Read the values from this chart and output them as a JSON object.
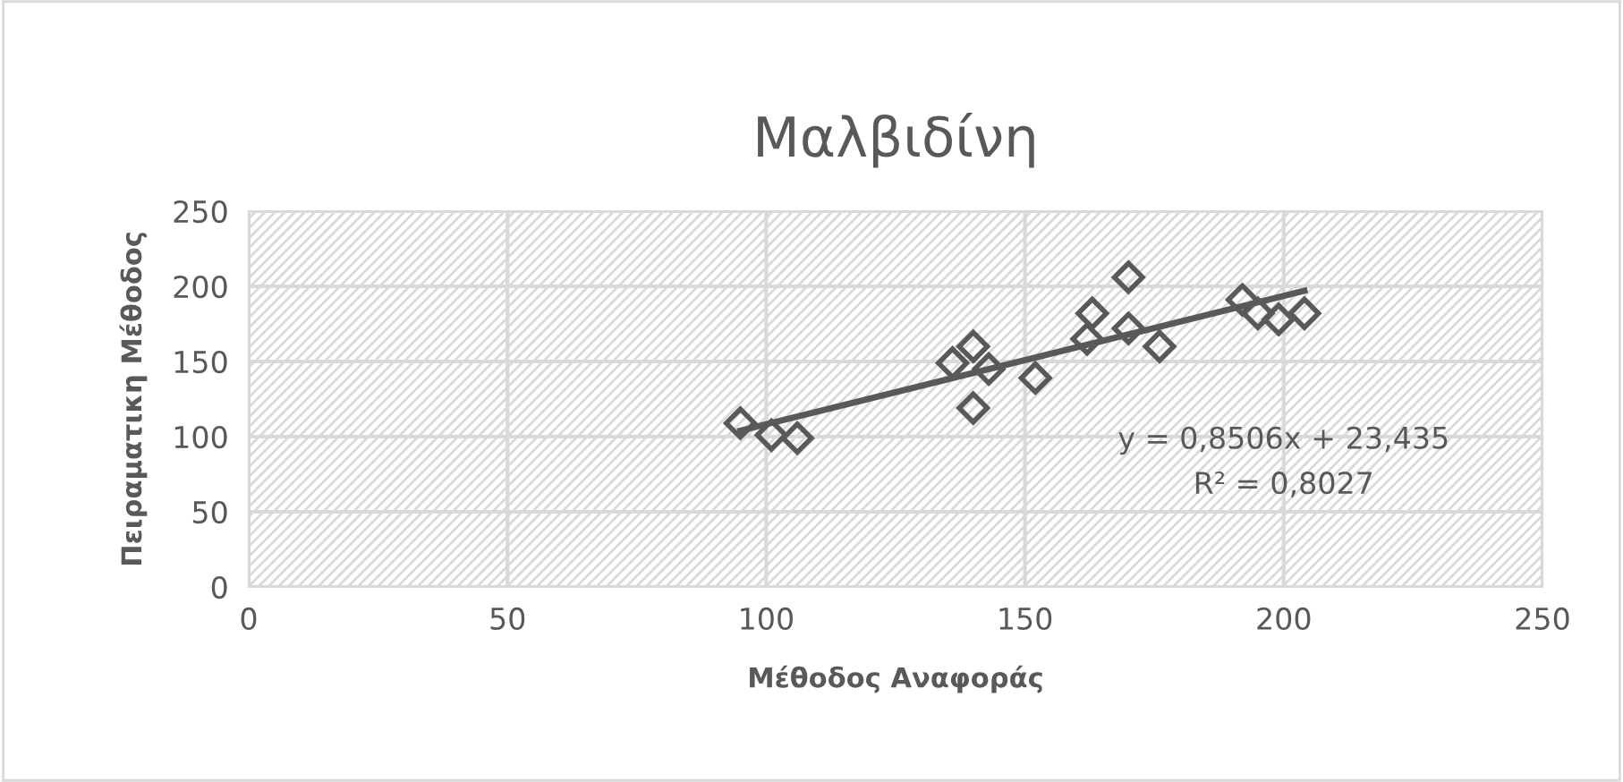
{
  "chart_data": {
    "type": "scatter",
    "title": "Μαλβιδίνη",
    "xlabel": "Μέθοδος Αναφοράς",
    "ylabel": "Πειραματικη Μέθοδος",
    "xlim": [
      0,
      250
    ],
    "ylim": [
      0,
      250
    ],
    "xticks": [
      0,
      50,
      100,
      150,
      200,
      250
    ],
    "yticks": [
      0,
      50,
      100,
      150,
      200,
      250
    ],
    "grid": true,
    "series": [
      {
        "color": "#595959",
        "marker": "diamond",
        "x": [
          95,
          101,
          106,
          136,
          140,
          143,
          140,
          152,
          162,
          163,
          170,
          170,
          176,
          192,
          195,
          199,
          204
        ],
        "values": [
          109,
          101,
          99,
          149,
          160,
          145,
          119,
          139,
          165,
          182,
          206,
          172,
          160,
          191,
          182,
          178,
          182
        ]
      },
      {
        "type": "line",
        "color": "#595959",
        "x": [
          95,
          204
        ],
        "values": [
          104,
          197
        ]
      }
    ],
    "annotations": [
      "y = 0,8506x + 23,435",
      "R² = 0,8027"
    ]
  }
}
